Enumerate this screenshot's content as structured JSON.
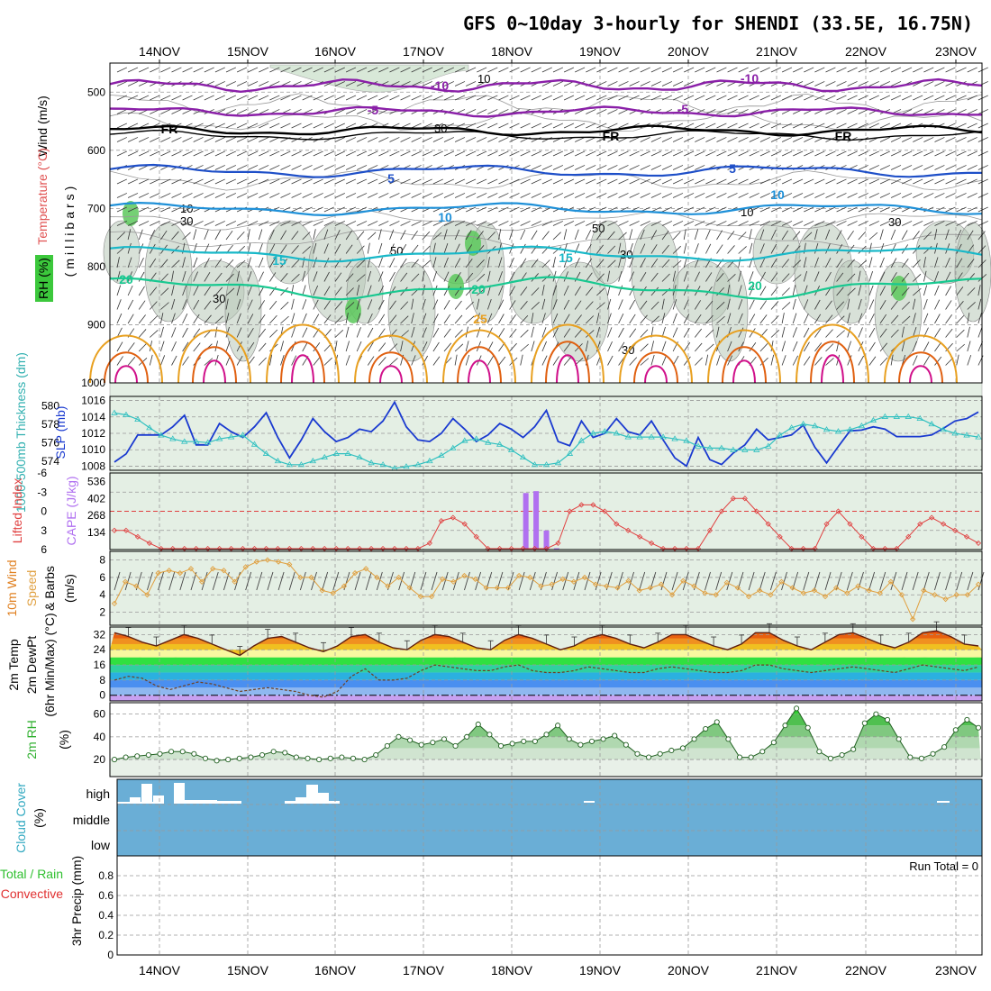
{
  "title": "GFS 0~10day 3-hourly for SHENDI (33.5E, 16.75N)",
  "dates": [
    "14NOV",
    "15NOV",
    "16NOV",
    "17NOV",
    "18NOV",
    "19NOV",
    "20NOV",
    "21NOV",
    "22NOV",
    "23NOV"
  ],
  "colors": {
    "purple": "#8a1fa8",
    "blue": "#1e4fc8",
    "lightblue": "#1e90d8",
    "cyan": "#18b8c8",
    "teal": "#18c890",
    "orange": "#e8a020",
    "darkorange": "#e06010",
    "magenta": "#d0108a",
    "rhgreen": "#4cc84c",
    "cape": "#b070f0",
    "li": "#e04040",
    "wind": "#e0a040",
    "slp": "#1a3ad0",
    "thick": "#30c0c0",
    "cloud": "#6aaed6"
  },
  "chart_data": [
    {
      "id": "upper_air",
      "type": "contour",
      "ylabel": "(millibars)",
      "ylabels": [
        "Wind (m/s)",
        "Temperature (°C)",
        "RH (%)"
      ],
      "pressure_ticks": [
        500,
        600,
        700,
        800,
        900,
        1000
      ],
      "ylim": [
        1000,
        450
      ],
      "temperature_contour_labels": [
        "-10",
        "-5",
        "FR",
        "5",
        "10",
        "15",
        "20",
        "25"
      ],
      "rh_contour_labels": [
        "10",
        "30",
        "50"
      ]
    },
    {
      "id": "slp_thickness",
      "type": "line",
      "ylabels": [
        "1000-500mb Thickness (dm)",
        "SLP (mb)"
      ],
      "left_ticks": [
        574,
        576,
        578,
        580
      ],
      "right_ticks": [
        1008,
        1010,
        1012,
        1014,
        1016
      ],
      "series": [
        {
          "name": "SLP",
          "values": [
            1008.5,
            1009.5,
            1011.8,
            1011.8,
            1011.8,
            1012.8,
            1014.2,
            1010.6,
            1010.6,
            1013.2,
            1012.2,
            1011.5,
            1012.8,
            1014.5,
            1011.5,
            1009.0,
            1011.2,
            1013.8,
            1012.2,
            1011.0,
            1011.5,
            1012.5,
            1012.2,
            1013.5,
            1015.8,
            1012.8,
            1011.2,
            1011.0,
            1012.0,
            1013.8,
            1012.5,
            1011.0,
            1011.8,
            1013.2,
            1012.5,
            1011.5,
            1012.8,
            1014.8,
            1011.0,
            1010.5,
            1013.5,
            1011.5,
            1012.0,
            1013.8,
            1012.2,
            1011.8,
            1013.5,
            1011.2,
            1009.0,
            1008.0,
            1011.5,
            1008.8,
            1008.2,
            1009.6,
            1010.6,
            1012.5,
            1011.2,
            1011.5,
            1011.8,
            1013.0,
            1010.3,
            1008.4,
            1010.4,
            1012.3,
            1012.4,
            1012.8,
            1012.5,
            1011.6,
            1011.6,
            1011.6,
            1011.8,
            1012.6,
            1013.5,
            1013.8,
            1014.6
          ]
        },
        {
          "name": "Thickness",
          "values": [
            579.2,
            579.0,
            578.5,
            577.6,
            576.8,
            576.4,
            576.1,
            576.1,
            576.0,
            576.4,
            576.6,
            576.8,
            575.8,
            574.8,
            574.0,
            573.6,
            573.6,
            574.0,
            574.4,
            574.8,
            574.8,
            574.4,
            573.8,
            573.6,
            573.2,
            573.4,
            573.6,
            574.0,
            574.6,
            575.4,
            576.2,
            576.4,
            576.0,
            575.8,
            575.2,
            574.4,
            573.6,
            573.6,
            573.8,
            574.8,
            576.2,
            577.0,
            577.2,
            577.0,
            576.6,
            576.6,
            576.6,
            576.6,
            576.4,
            576.2,
            575.6,
            575.4,
            575.4,
            575.2,
            575.2,
            575.2,
            575.6,
            576.8,
            577.6,
            578.0,
            577.8,
            577.4,
            577.2,
            577.4,
            577.8,
            578.4,
            578.8,
            578.8,
            578.8,
            578.6,
            578.0,
            577.4,
            577.0,
            576.8,
            576.6
          ]
        }
      ]
    },
    {
      "id": "li_cape",
      "type": "bar_line",
      "ylabels": [
        "Lifted Index",
        "CAPE (J/kg)"
      ],
      "left_ticks": [
        "-6",
        "-3",
        "0",
        "3",
        "6"
      ],
      "right_ticks": [
        134,
        268,
        402,
        536
      ],
      "lifted_index": [
        3,
        3,
        4,
        5,
        7,
        8,
        8,
        8,
        8,
        8,
        8,
        8,
        8,
        8,
        8,
        8,
        8,
        8,
        8,
        8,
        8,
        8,
        8,
        8,
        8,
        8,
        7.5,
        5,
        1.5,
        1,
        2,
        4,
        6,
        7,
        8,
        8,
        8,
        8,
        5,
        0,
        -1,
        -1,
        0,
        2,
        3,
        4,
        5,
        6,
        7,
        8,
        7,
        3,
        0,
        -2,
        -2,
        0,
        2,
        4,
        6,
        8,
        6,
        2,
        0,
        2,
        4,
        6,
        8,
        7,
        4,
        2,
        1,
        2,
        3,
        4,
        5
      ],
      "cape": [
        0,
        0,
        0,
        0,
        0,
        0,
        0,
        0,
        0,
        0,
        0,
        0,
        0,
        0,
        0,
        0,
        0,
        0,
        0,
        0,
        0,
        0,
        0,
        0,
        0,
        0,
        0,
        10,
        0,
        0,
        0,
        0,
        0,
        0,
        0,
        0,
        0,
        0,
        0,
        0,
        445,
        460,
        150,
        10,
        0,
        0,
        0,
        0,
        0,
        0,
        0,
        0,
        0,
        0,
        0,
        0,
        0,
        0,
        0,
        0,
        0,
        0,
        0,
        0,
        0,
        0,
        0,
        0,
        0,
        0,
        0,
        0,
        0,
        0,
        0,
        0,
        0,
        0,
        0,
        0,
        0,
        0,
        0,
        0,
        0
      ]
    },
    {
      "id": "wind10m",
      "type": "line",
      "ylabels": [
        "10m Wind",
        "Speed",
        "& Barbs",
        "(m/s)"
      ],
      "ticks": [
        2,
        4,
        6,
        8
      ],
      "series": [
        {
          "name": "10m wind speed",
          "values": [
            3.0,
            5.5,
            5.0,
            4.0,
            6.5,
            6.8,
            6.5,
            7.0,
            5.5,
            7.0,
            6.8,
            5.5,
            7.2,
            7.8,
            8.0,
            7.8,
            7.5,
            6.0,
            6.0,
            4.5,
            4.2,
            5.0,
            6.5,
            7.0,
            6.0,
            5.0,
            6.0,
            4.8,
            3.8,
            3.8,
            5.8,
            5.5,
            6.2,
            5.8,
            4.8,
            4.8,
            4.8,
            6.2,
            6.0,
            5.0,
            5.2,
            5.8,
            5.5,
            6.0,
            5.2,
            5.0,
            4.8,
            5.6,
            4.5,
            4.8,
            5.2,
            4.0,
            5.6,
            5.0,
            4.2,
            4.0,
            5.4,
            4.8,
            3.8,
            4.5,
            4.0,
            5.5,
            4.8,
            4.2,
            4.5,
            3.8,
            4.8,
            4.2,
            5.0,
            4.5,
            4.2,
            5.5,
            4.0,
            1.2,
            4.5,
            4.0,
            3.5,
            4.0,
            4.0,
            5.2
          ]
        }
      ]
    },
    {
      "id": "temp2m",
      "type": "area",
      "ylabels": [
        "2m Temp",
        "2m DewPt",
        "(6hr Min/Max) (°C)"
      ],
      "ticks": [
        0,
        8,
        16,
        24,
        32
      ],
      "series": [
        {
          "name": "2m Temp",
          "values": [
            33,
            31,
            28,
            26,
            29,
            32,
            30,
            27,
            24,
            21,
            26,
            30,
            31,
            28,
            25,
            23,
            26,
            31,
            32,
            28,
            25,
            24,
            29,
            32,
            31,
            28,
            25,
            24,
            29,
            32,
            30,
            27,
            24,
            26,
            30,
            32,
            30,
            27,
            25,
            28,
            32,
            32,
            29,
            26,
            24,
            27,
            33,
            33,
            29,
            26,
            24,
            28,
            32,
            33,
            30,
            27,
            25,
            28,
            33,
            34,
            31,
            27,
            26
          ]
        },
        {
          "name": "2m DewPt",
          "values": [
            8,
            10,
            9,
            5,
            3,
            5,
            7,
            6,
            4,
            2,
            3,
            4,
            3,
            2,
            0,
            -1,
            2,
            10,
            14,
            8,
            8,
            9,
            13,
            16,
            15,
            14,
            13,
            13,
            15,
            16,
            13,
            12,
            12,
            13,
            15,
            14,
            13,
            12,
            12,
            14,
            15,
            14,
            13,
            12,
            12,
            13,
            16,
            16,
            14,
            13,
            12,
            13,
            14,
            15,
            14,
            13,
            12,
            14,
            16,
            15,
            14,
            13,
            15
          ]
        }
      ]
    },
    {
      "id": "rh2m",
      "type": "area",
      "ylabels": [
        "2m RH",
        "(%)"
      ],
      "ticks": [
        20,
        40,
        60
      ],
      "series": [
        {
          "name": "2m RH",
          "values": [
            20,
            22,
            23,
            24,
            25,
            27,
            27,
            25,
            21,
            19,
            20,
            21,
            22,
            24,
            27,
            26,
            22,
            21,
            20,
            21,
            22,
            21,
            20,
            24,
            32,
            40,
            37,
            33,
            35,
            38,
            32,
            40,
            51,
            42,
            32,
            34,
            36,
            36,
            42,
            50,
            38,
            33,
            36,
            38,
            41,
            33,
            25,
            22,
            25,
            28,
            30,
            38,
            47,
            53,
            38,
            22,
            22,
            27,
            35,
            50,
            65,
            48,
            27,
            21,
            24,
            29,
            52,
            60,
            55,
            38,
            22,
            21,
            25,
            31,
            46,
            55,
            48
          ]
        }
      ]
    },
    {
      "id": "cloud",
      "type": "bar",
      "ylabels": [
        "Cloud Cover",
        "(%)"
      ],
      "categories": [
        "high",
        "middle",
        "low"
      ]
    },
    {
      "id": "precip",
      "type": "bar",
      "ylabels": [
        "Total / Rain",
        "Convective",
        "3hr Precip (mm)"
      ],
      "ticks": [
        "0",
        "0.2",
        "0.4",
        "0.6",
        "0.8"
      ],
      "annotation": "Run Total = 0",
      "values": []
    }
  ]
}
